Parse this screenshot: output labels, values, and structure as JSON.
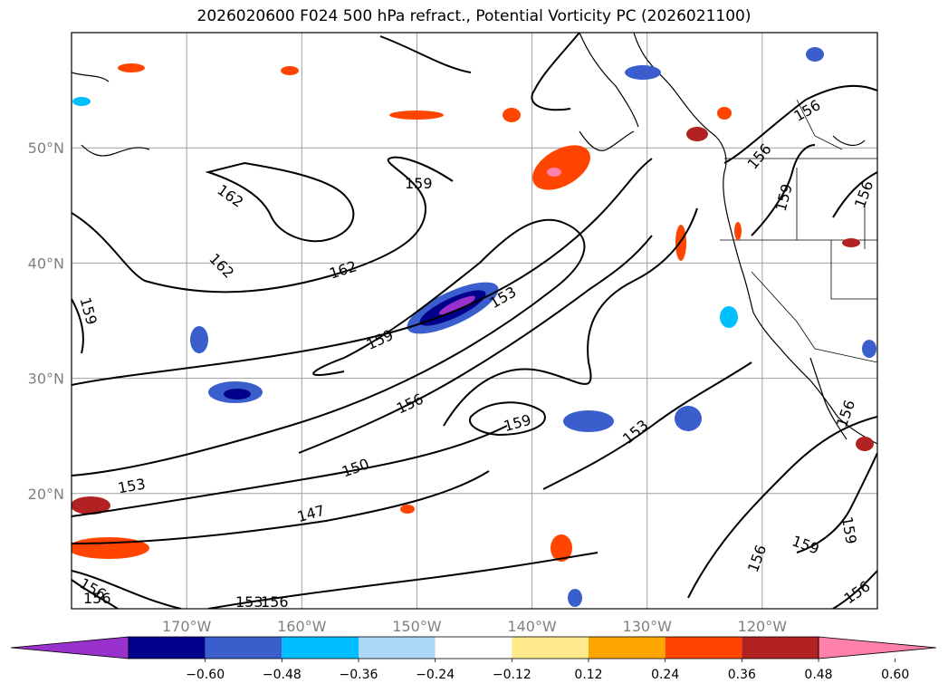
{
  "title": "2026020600 F024 500 hPa refract., Potential Vorticity PC (2026021100)",
  "map": {
    "lat_labels": [
      "50°N",
      "40°N",
      "30°N",
      "20°N"
    ],
    "lat_values": [
      50,
      40,
      30,
      20
    ],
    "lon_labels": [
      "170°W",
      "160°W",
      "150°W",
      "140°W",
      "130°W",
      "120°W"
    ],
    "lon_values": [
      -170,
      -160,
      -150,
      -140,
      -130,
      -120
    ],
    "extent": {
      "lon_min": -180,
      "lon_max": -110,
      "lat_min": 10,
      "lat_max": 60
    },
    "grid": true,
    "contour_labels": [
      "159",
      "162",
      "162",
      "162",
      "159",
      "153",
      "159",
      "156",
      "159",
      "150",
      "153",
      "147",
      "153",
      "156",
      "156",
      "156",
      "159",
      "156",
      "156",
      "159",
      "159",
      "156",
      "153",
      "156",
      "156",
      "156"
    ]
  },
  "colorbar": {
    "tick_labels": [
      "−0.60",
      "−0.48",
      "−0.36",
      "−0.24",
      "−0.12",
      "0.12",
      "0.24",
      "0.36",
      "0.48",
      "0.60"
    ],
    "bins": [
      {
        "color": "#9932cc"
      },
      {
        "color": "#00008b"
      },
      {
        "color": "#3a5fcd"
      },
      {
        "color": "#00bfff"
      },
      {
        "color": "#add8f7"
      },
      {
        "color": "#ffffff"
      },
      {
        "color": "#ffe98a"
      },
      {
        "color": "#ffa500"
      },
      {
        "color": "#ff4500"
      },
      {
        "color": "#b22222"
      },
      {
        "color": "#ff80ab"
      }
    ],
    "extend": "both"
  },
  "colors": {
    "grid": "#a0a0a0",
    "tick_label": "#808080"
  }
}
